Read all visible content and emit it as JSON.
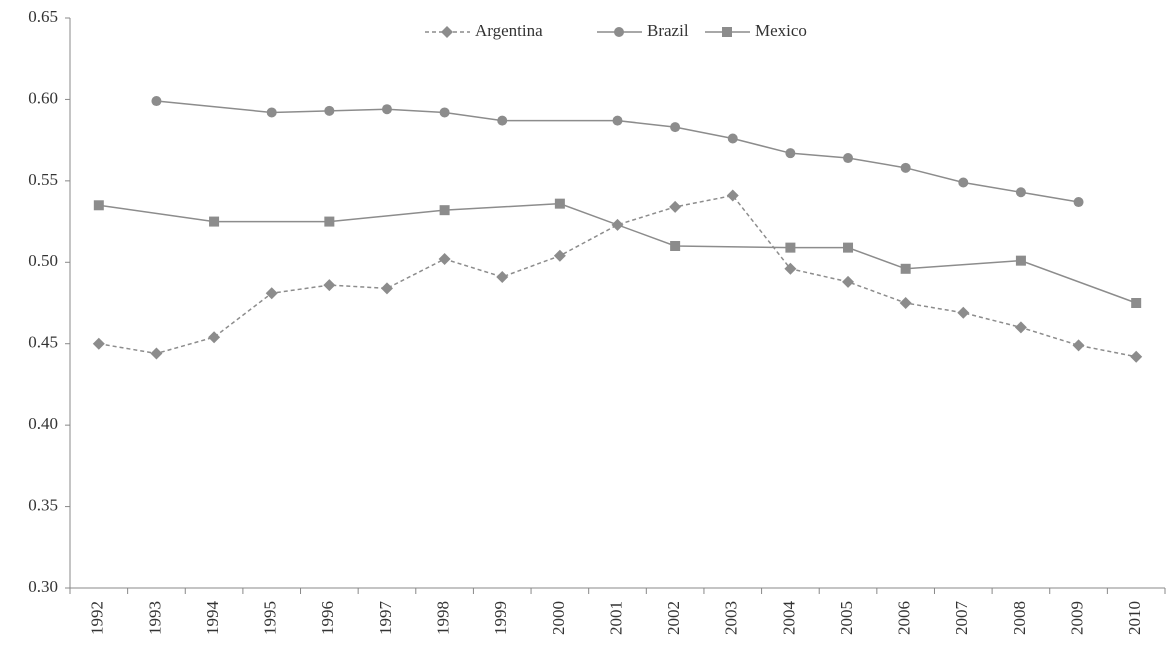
{
  "chart_data": {
    "type": "line",
    "categories": [
      "1992",
      "1993",
      "1994",
      "1995",
      "1996",
      "1997",
      "1998",
      "1999",
      "2000",
      "2001",
      "2002",
      "2003",
      "2004",
      "2005",
      "2006",
      "2007",
      "2008",
      "2009",
      "2010"
    ],
    "series": [
      {
        "name": "Argentina",
        "color": "#8c8c8c",
        "marker": "diamond",
        "dashed": true,
        "values": [
          0.45,
          0.444,
          0.454,
          0.481,
          0.486,
          0.484,
          0.502,
          0.491,
          0.504,
          0.523,
          0.534,
          0.541,
          0.496,
          0.488,
          0.475,
          0.469,
          0.46,
          0.449,
          0.442
        ]
      },
      {
        "name": "Brazil",
        "color": "#8c8c8c",
        "marker": "circle",
        "dashed": false,
        "values": [
          null,
          0.599,
          null,
          0.592,
          0.593,
          0.594,
          0.592,
          0.587,
          null,
          0.587,
          0.583,
          0.576,
          0.567,
          0.564,
          0.558,
          0.549,
          0.543,
          0.537,
          null
        ]
      },
      {
        "name": "Mexico",
        "color": "#8c8c8c",
        "marker": "square",
        "dashed": false,
        "values": [
          0.535,
          null,
          0.525,
          null,
          0.525,
          null,
          0.532,
          null,
          0.536,
          null,
          0.51,
          null,
          0.509,
          0.509,
          0.496,
          null,
          0.501,
          null,
          0.475
        ]
      }
    ],
    "ylim": [
      0.3,
      0.65
    ],
    "yticks": [
      {
        "value": 0.3,
        "label": "0.30"
      },
      0.35,
      {
        "value": 0.4,
        "label": "0.40"
      },
      0.45,
      {
        "value": 0.5,
        "label": "0.50"
      },
      0.55,
      {
        "value": 0.6,
        "label": "0.60"
      },
      0.65
    ],
    "span_gaps": true,
    "grid": false,
    "legend": "top"
  }
}
